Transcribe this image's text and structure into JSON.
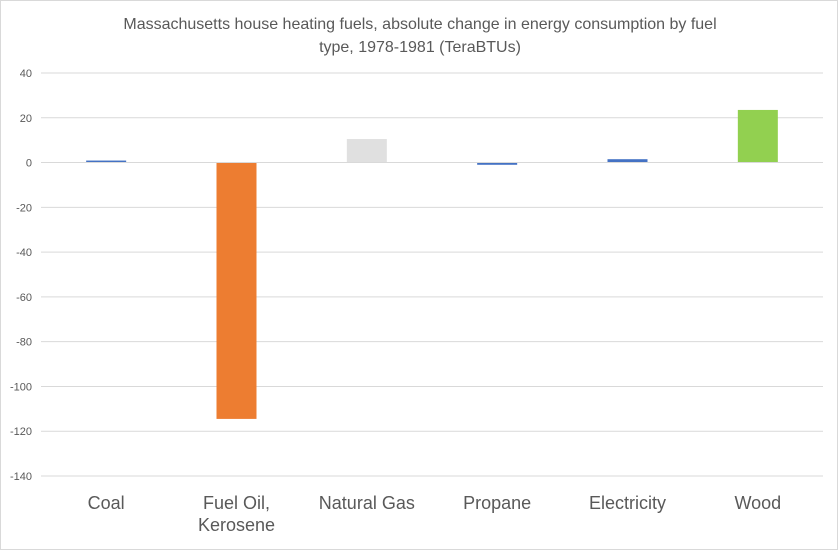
{
  "chart_data": {
    "type": "bar",
    "title_lines": [
      "Massachusetts house heating fuels, absolute change in energy consumption by fuel",
      "type, 1978-1981 (TeraBTUs)"
    ],
    "categories": [
      [
        "Coal"
      ],
      [
        "Fuel Oil,",
        "Kerosene"
      ],
      [
        "Natural Gas"
      ],
      [
        "Propane"
      ],
      [
        "Electricity"
      ],
      [
        "Wood"
      ]
    ],
    "values": [
      0.5,
      -114.5,
      10.5,
      -1.0,
      1.5,
      23.5
    ],
    "colors": [
      "#4472c4",
      "#ed7d31",
      "#e0e0e0",
      "#4472c4",
      "#4472c4",
      "#92d050"
    ],
    "ylim": [
      -140,
      40
    ],
    "yticks": [
      40,
      20,
      0,
      -20,
      -40,
      -60,
      -80,
      -100,
      -120,
      -140
    ],
    "grid": true,
    "legend": "none",
    "xlabel": "",
    "ylabel": ""
  }
}
